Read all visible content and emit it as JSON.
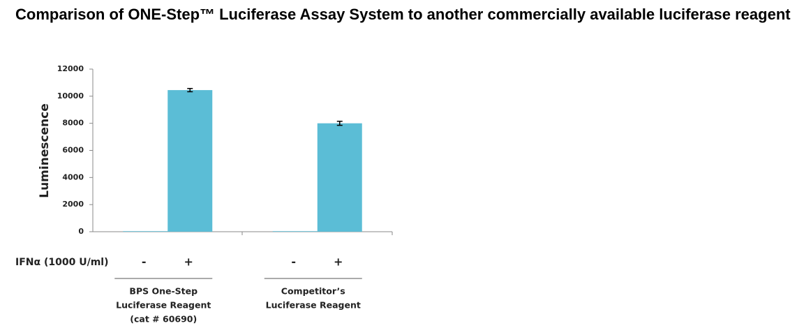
{
  "chart_data": {
    "type": "bar",
    "title": "Comparison of ONE-Step™ Luciferase Assay System to another commercially available luciferase reagent",
    "y_label": "Luminescence",
    "row_label": "IFNα (1000 U/ml)",
    "categories": [
      "-",
      "+",
      "-",
      "+"
    ],
    "values": [
      40,
      10450,
      40,
      8000
    ],
    "errors": [
      null,
      120,
      null,
      150
    ],
    "groups": [
      {
        "lines": [
          "BPS One-Step",
          "Luciferase Reagent",
          "(cat # 60690)"
        ]
      },
      {
        "lines": [
          "Competitor’s",
          "Luciferase Reagent"
        ]
      }
    ],
    "color": "#5bbdd6",
    "ylim": [
      0,
      12000
    ],
    "yticks": [
      0,
      2000,
      4000,
      6000,
      8000,
      10000,
      12000
    ]
  }
}
